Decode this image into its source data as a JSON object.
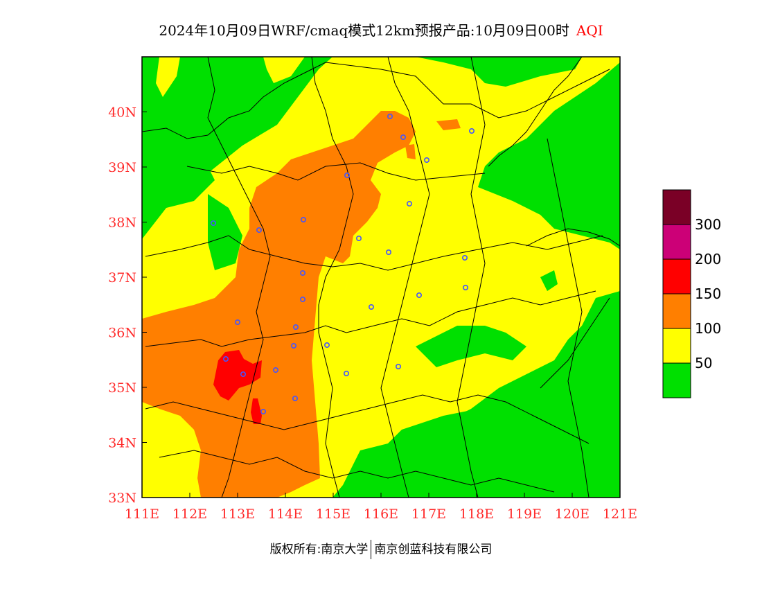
{
  "title": {
    "main": "2024年10月09日WRF/cmaq模式12km预报产品:10月09日00时",
    "variable": "AQI"
  },
  "axes": {
    "x_ticks": [
      "111E",
      "112E",
      "113E",
      "114E",
      "115E",
      "116E",
      "117E",
      "118E",
      "119E",
      "120E",
      "121E"
    ],
    "y_ticks": [
      "33N",
      "34N",
      "35N",
      "36N",
      "37N",
      "38N",
      "39N",
      "40N"
    ]
  },
  "legend": {
    "labels": [
      "50",
      "100",
      "150",
      "200",
      "300"
    ],
    "colors": [
      "#00e000",
      "#ffff00",
      "#ff7f00",
      "#ff0000",
      "#cc0077",
      "#7a0026"
    ]
  },
  "footer": {
    "left": "版权所有:南京大学",
    "right": "南京创蓝科技有限公司"
  },
  "colors": {
    "good": "#00e000",
    "moderate": "#ffff00",
    "usg": "#ff7f00",
    "unhealthy": "#ff0000",
    "tick_label": "#ff2a2a",
    "station_marker": "#4455ff"
  }
}
